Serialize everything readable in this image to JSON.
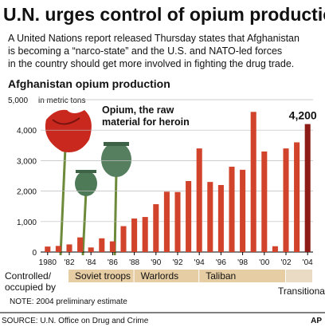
{
  "chart_data": {
    "type": "bar",
    "title": "U.N. urges control of opium production",
    "subtitle": [
      "A United Nations report released Thursday states that Afghanistan",
      "is becoming a “narco-state” and the U.S. and NATO-led forces",
      "in the country should get more involved in fighting the drug trade."
    ],
    "chart_title": "Afghanistan opium production",
    "y_unit": "in metric tons",
    "annotation": [
      "Opium, the raw",
      "material for heroin"
    ],
    "x": [
      1980,
      1981,
      1982,
      1983,
      1984,
      1985,
      1986,
      1987,
      1988,
      1989,
      1990,
      1991,
      1992,
      1993,
      1994,
      1995,
      1996,
      1997,
      1998,
      1999,
      2000,
      2001,
      2002,
      2003,
      2004
    ],
    "values": [
      180,
      200,
      250,
      480,
      150,
      450,
      350,
      850,
      1100,
      1150,
      1570,
      1980,
      1970,
      2330,
      3400,
      2300,
      2200,
      2800,
      2700,
      4600,
      3300,
      190,
      3400,
      3600,
      4200
    ],
    "value_labels": [
      null,
      null,
      null,
      null,
      null,
      null,
      null,
      null,
      null,
      null,
      null,
      null,
      null,
      null,
      null,
      null,
      null,
      null,
      null,
      null,
      null,
      null,
      null,
      null,
      "4,200"
    ],
    "colors": {
      "bar": "#d2432b",
      "highlight": "#8e1c16"
    },
    "xlim": [
      1979.5,
      2004.5
    ],
    "xticks": [
      {
        "value": 1980,
        "label": "1980"
      },
      {
        "value": 1982,
        "label": "'82"
      },
      {
        "value": 1984,
        "label": "'84"
      },
      {
        "value": 1986,
        "label": "'86"
      },
      {
        "value": 1988,
        "label": "'88"
      },
      {
        "value": 1990,
        "label": "'90"
      },
      {
        "value": 1992,
        "label": "'92"
      },
      {
        "value": 1994,
        "label": "'94"
      },
      {
        "value": 1996,
        "label": "'96"
      },
      {
        "value": 1998,
        "label": "'98"
      },
      {
        "value": 2000,
        "label": "'00"
      },
      {
        "value": 2002,
        "label": "'02"
      },
      {
        "value": 2004,
        "label": "'04"
      }
    ],
    "ylim": [
      0,
      5000
    ],
    "yticks": [
      0,
      {
        "value": 1000,
        "label": "1,000"
      },
      {
        "value": 2000,
        "label": "2,000"
      },
      {
        "value": 3000,
        "label": "3,000"
      },
      {
        "value": 4000,
        "label": "4,000"
      },
      {
        "value": 5000,
        "label": "5,000"
      }
    ],
    "grid": true,
    "timeline_label": [
      "Controlled/",
      "occupied by"
    ],
    "periods": [
      {
        "label": "Soviet troops",
        "from": 1979.5,
        "to": 1988
      },
      {
        "label": "Warlords",
        "from": 1988,
        "to": 1994
      },
      {
        "label": "Taliban",
        "from": 1994,
        "to": 2002
      },
      {
        "label": "Transitional government",
        "from": 2002,
        "to": 2004.5
      }
    ],
    "note": "NOTE: 2004 preliminary estimate",
    "source": "SOURCE: U.N. Office on Drug and Crime",
    "credit": "AP"
  }
}
